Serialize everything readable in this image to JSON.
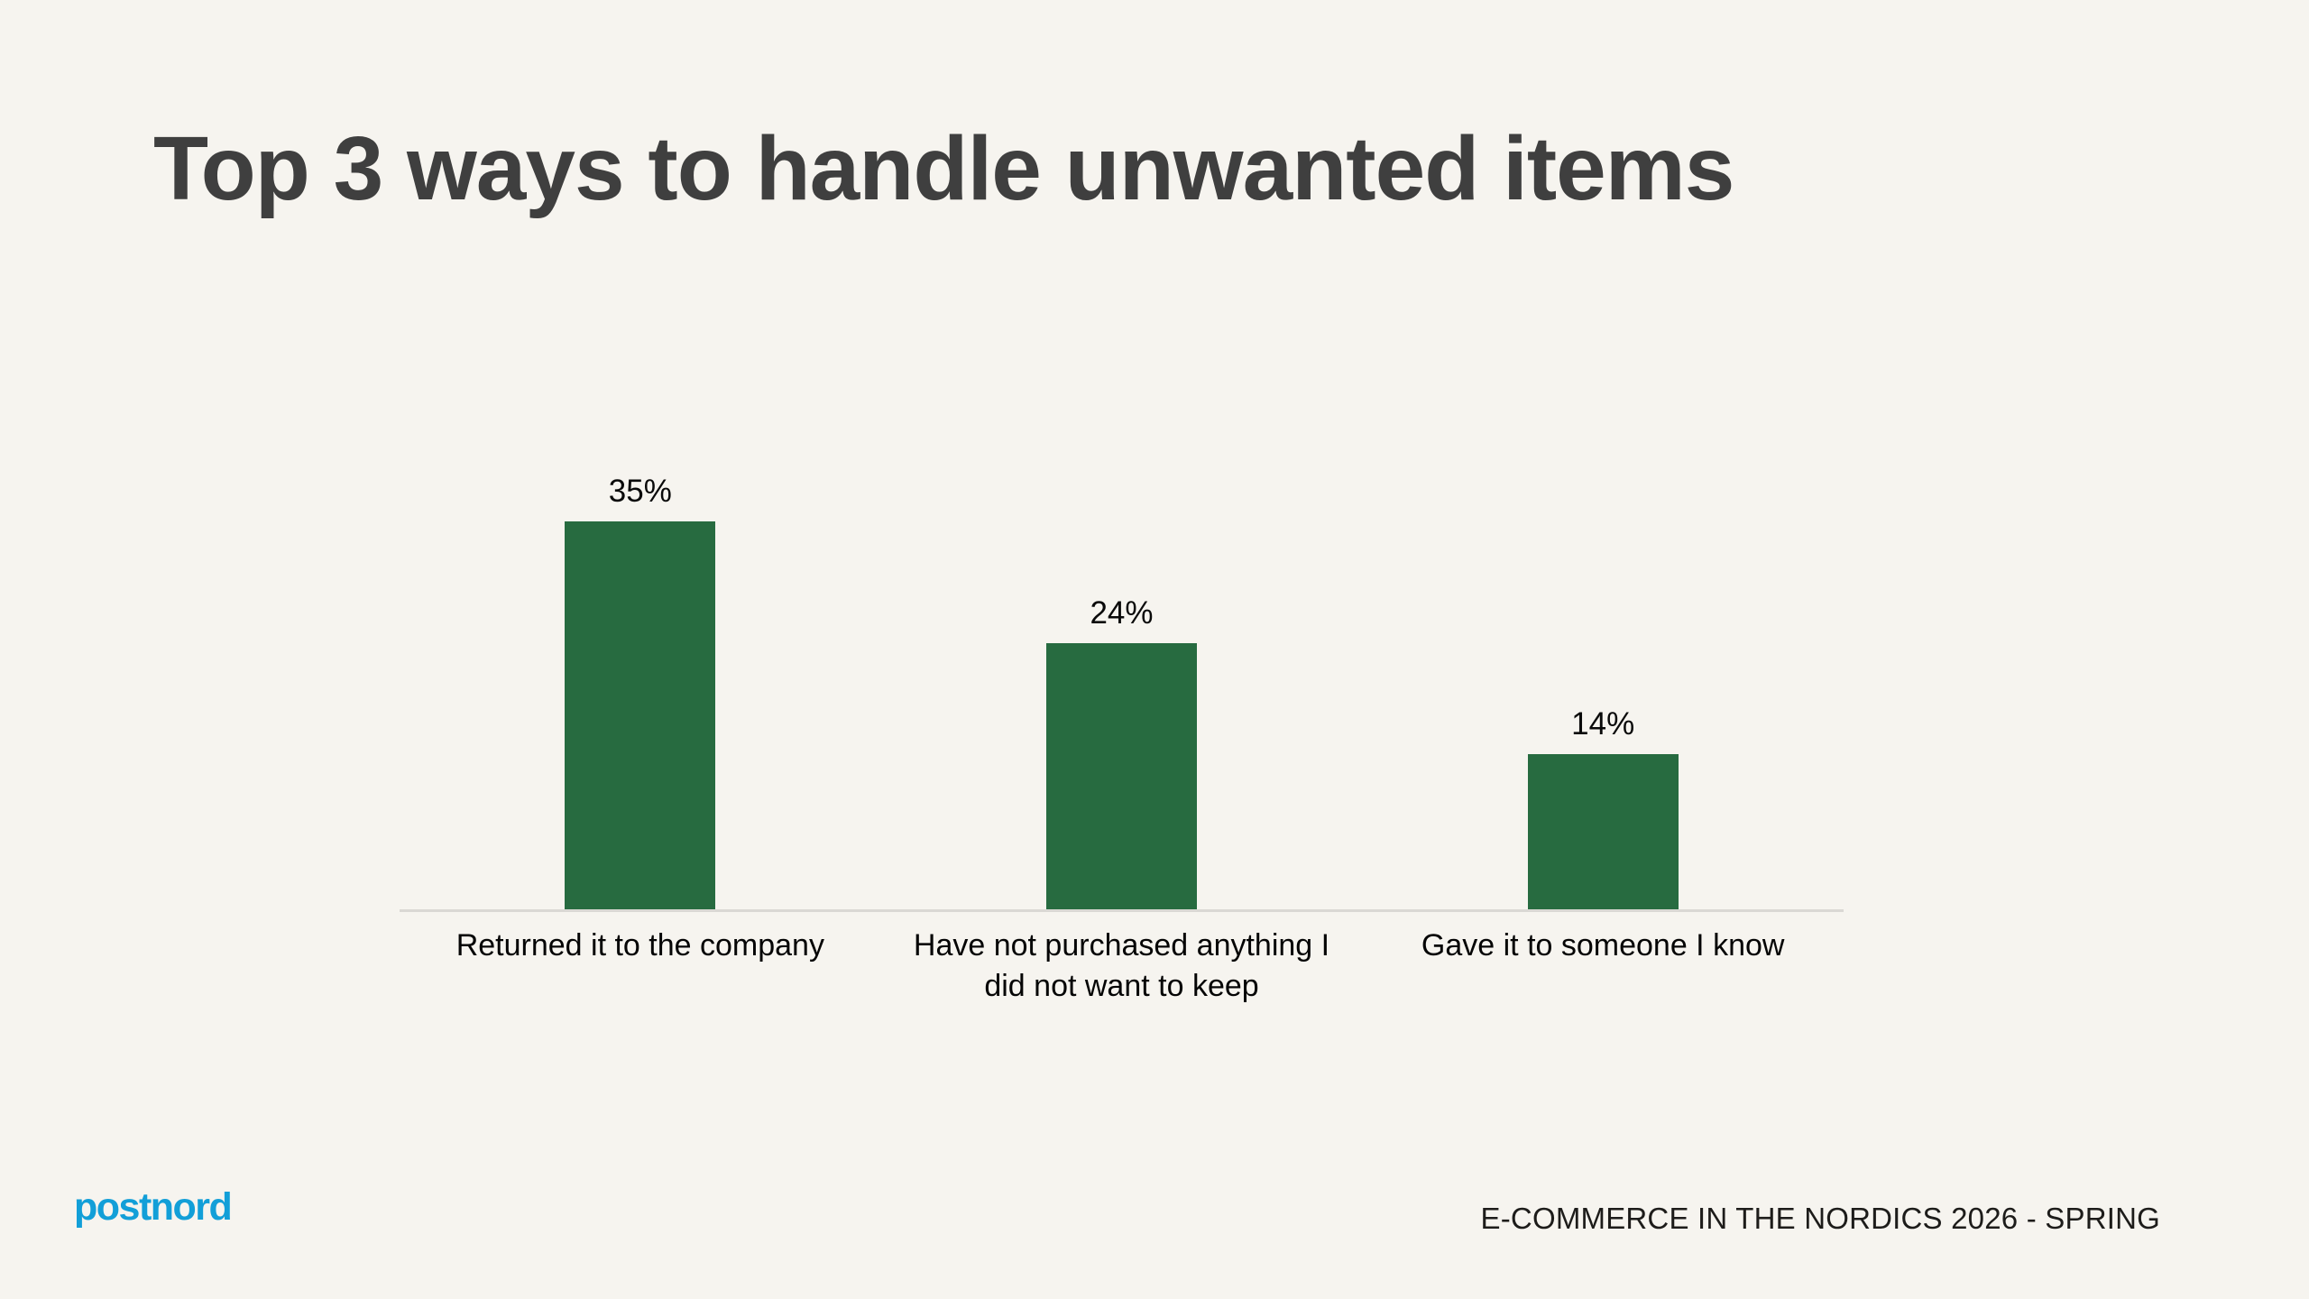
{
  "title": "Top 3 ways to handle unwanted items",
  "footer": {
    "logo_text": "postnord",
    "caption": "E-COMMERCE IN THE NORDICS 2026 - SPRING"
  },
  "colors": {
    "background": "#F6F4EF",
    "bar": "#276B40",
    "title": "#3F3F3F",
    "logo": "#129FD8",
    "axis_line": "#DAD8D4"
  },
  "chart_data": {
    "type": "bar",
    "title": "Top 3 ways to handle unwanted items",
    "categories": [
      "Returned it to the company",
      "Have not purchased anything I\ndid not want to keep",
      "Gave it to someone I know"
    ],
    "values": [
      35,
      24,
      14
    ],
    "value_labels": [
      "35%",
      "24%",
      "14%"
    ],
    "xlabel": "",
    "ylabel": "",
    "ylim": [
      0,
      41.3
    ],
    "grid": false,
    "legend": false,
    "bar_color": "#276B40",
    "data_labels_position": "above-bar"
  }
}
